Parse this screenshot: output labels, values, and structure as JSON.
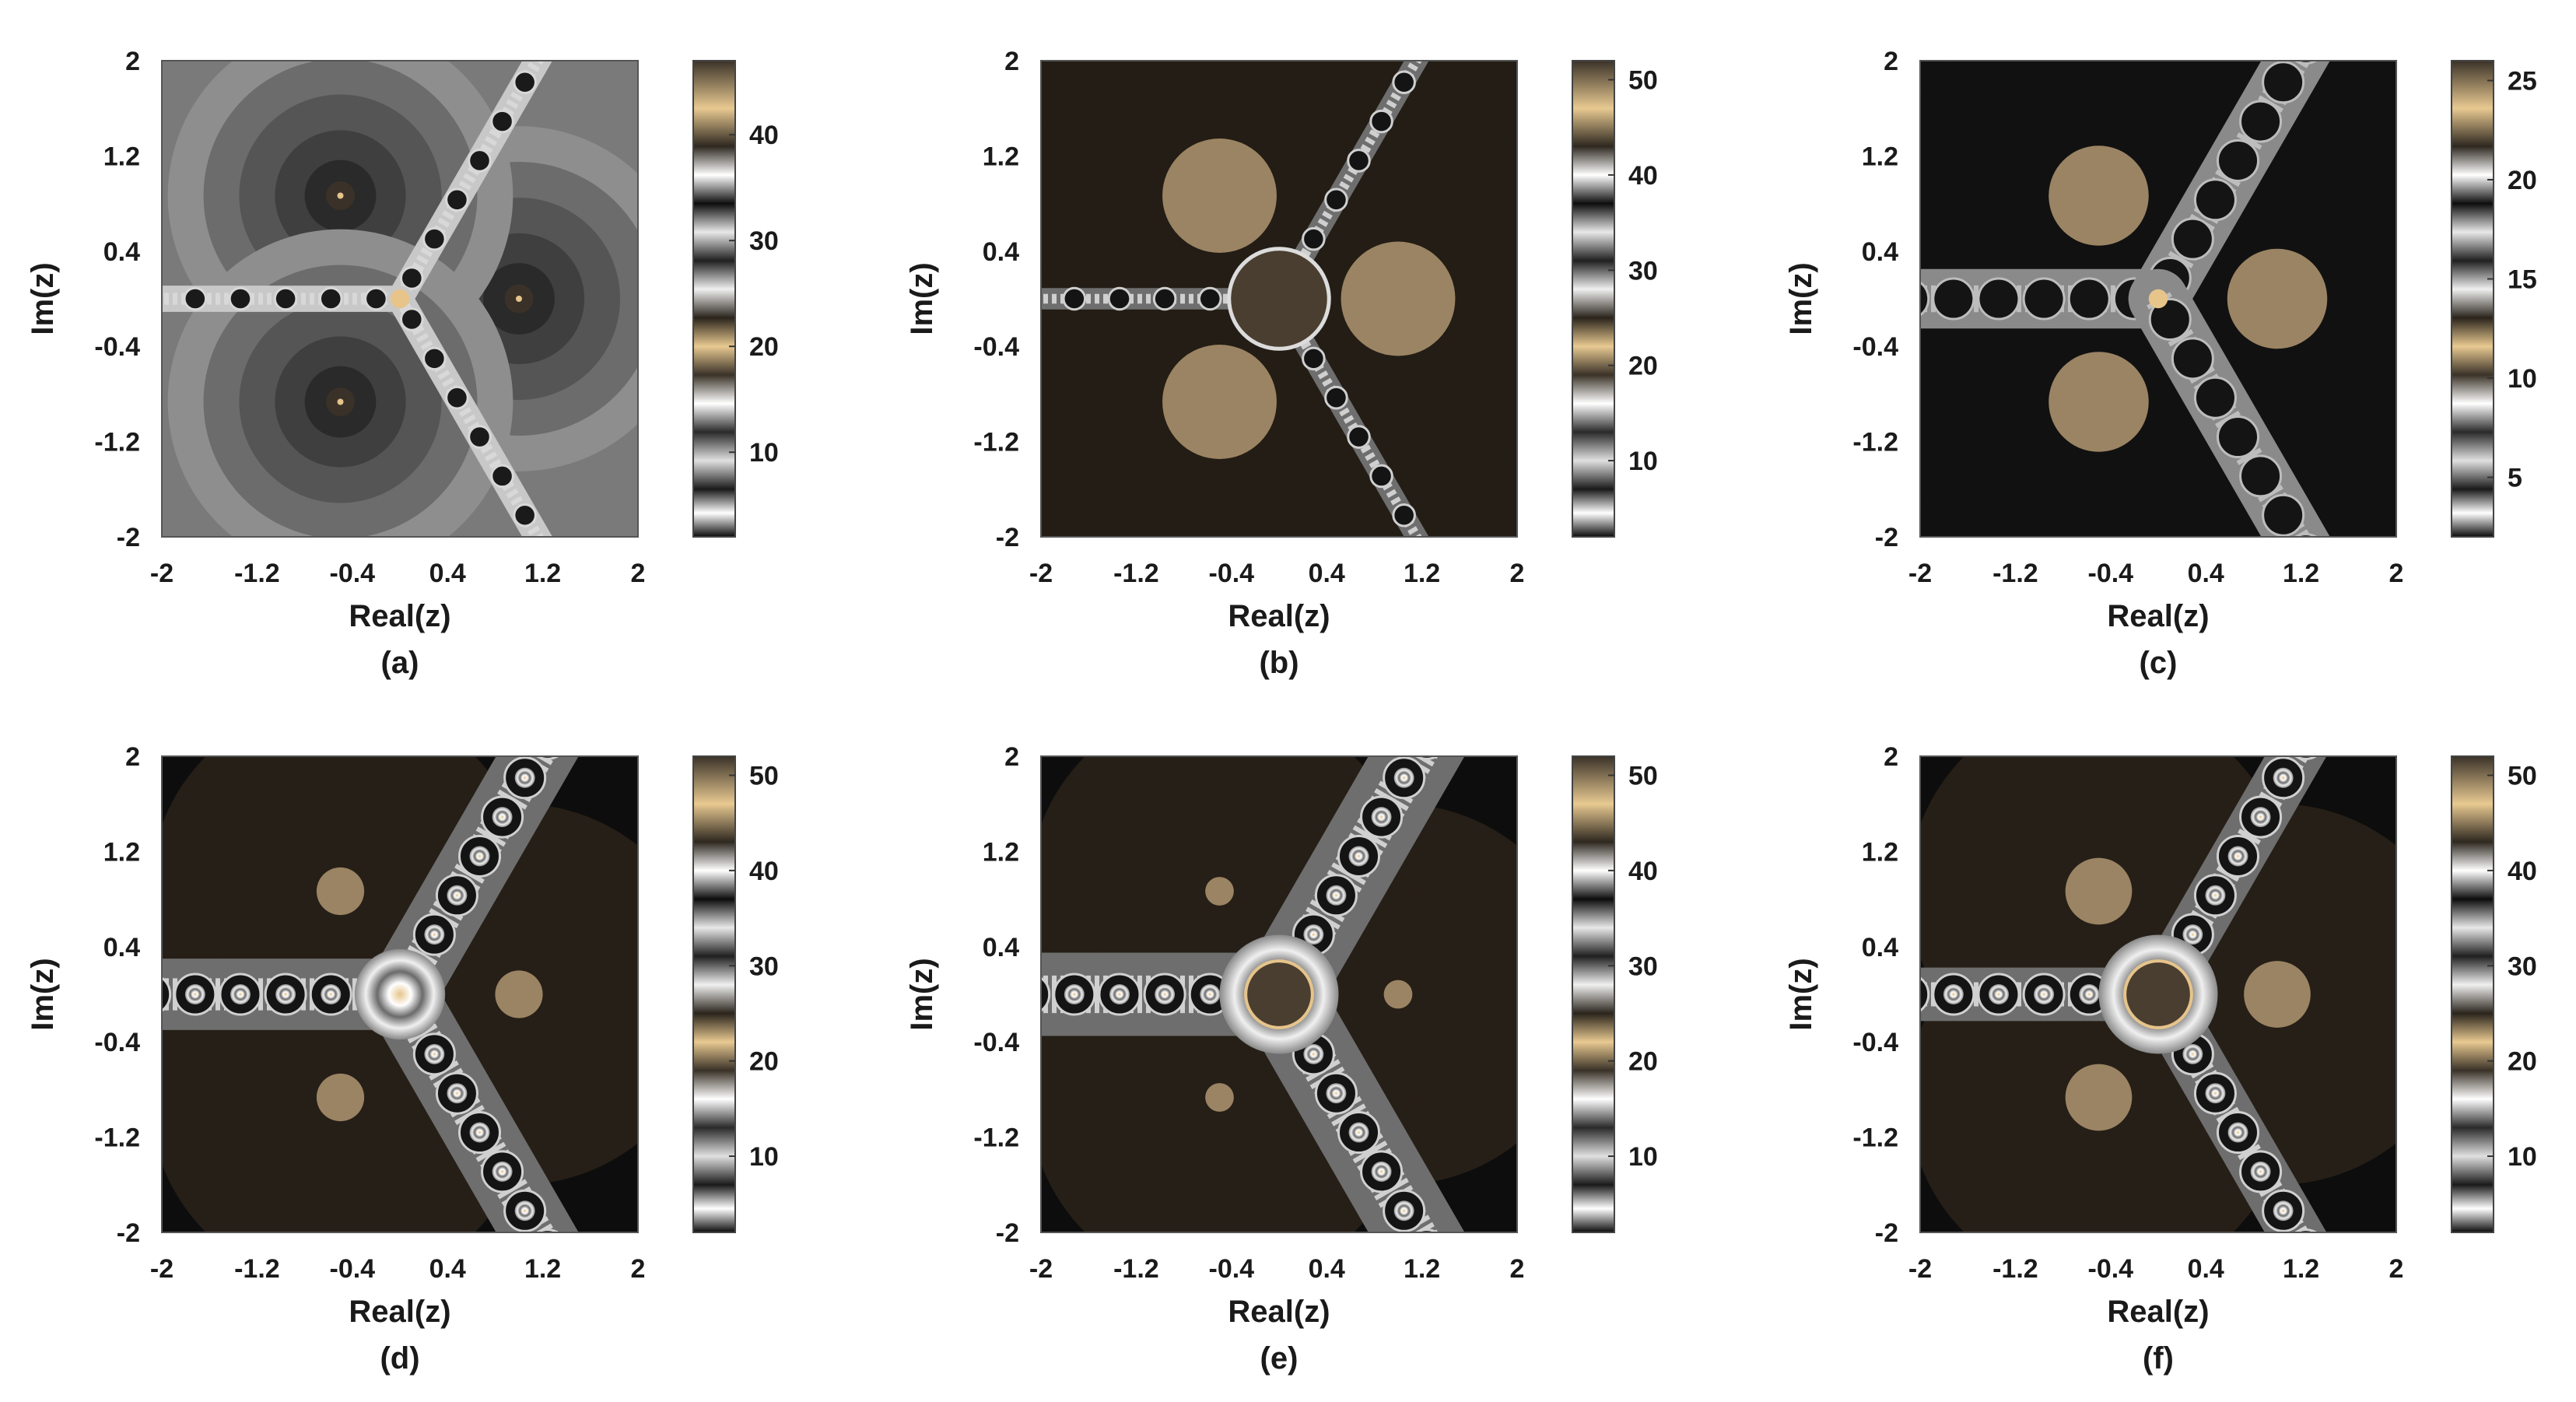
{
  "chart_data": [
    {
      "type": "heatmap",
      "caption": "(a)",
      "xlabel": "Real(z)",
      "ylabel": "Im(z)",
      "xlim": [
        -2,
        2
      ],
      "ylim": [
        -2,
        2
      ],
      "xticks": [
        "-2",
        "-1.2",
        "-0.4",
        "0.4",
        "1.2",
        "2"
      ],
      "yticks": [
        "2",
        "1.2",
        "0.4",
        "-0.4",
        "-1.2",
        "-2"
      ],
      "colorbar": {
        "ticks": [
          "40",
          "30",
          "20",
          "10"
        ],
        "range": [
          2,
          47
        ]
      },
      "roots": [
        [
          1,
          0
        ],
        [
          -0.5,
          0.866
        ],
        [
          -0.5,
          -0.866
        ]
      ],
      "background": "#7a7a7a",
      "basin_color": "#2e2e2e",
      "root_disk_color": "#3a3228",
      "fractal_color": "#d8d8d8",
      "style": "a"
    },
    {
      "type": "heatmap",
      "caption": "(b)",
      "xlabel": "Real(z)",
      "ylabel": "Im(z)",
      "xlim": [
        -2,
        2
      ],
      "ylim": [
        -2,
        2
      ],
      "xticks": [
        "-2",
        "-1.2",
        "-0.4",
        "0.4",
        "1.2",
        "2"
      ],
      "yticks": [
        "2",
        "1.2",
        "0.4",
        "-0.4",
        "-1.2",
        "-2"
      ],
      "colorbar": {
        "ticks": [
          "50",
          "40",
          "30",
          "20",
          "10"
        ],
        "range": [
          2,
          52
        ]
      },
      "roots": [
        [
          1,
          0
        ],
        [
          -0.5,
          0.866
        ],
        [
          -0.5,
          -0.866
        ]
      ],
      "background": "#231d15",
      "basin_color": "#231d15",
      "root_disk_color": "#9b8463",
      "fractal_color": "#cfcfcf",
      "style": "b"
    },
    {
      "type": "heatmap",
      "caption": "(c)",
      "xlabel": "Real(z)",
      "ylabel": "Im(z)",
      "xlim": [
        -2,
        2
      ],
      "ylim": [
        -2,
        2
      ],
      "xticks": [
        "-2",
        "-1.2",
        "-0.4",
        "0.4",
        "1.2",
        "2"
      ],
      "yticks": [
        "2",
        "1.2",
        "0.4",
        "-0.4",
        "-1.2",
        "-2"
      ],
      "colorbar": {
        "ticks": [
          "25",
          "20",
          "15",
          "10",
          "5"
        ],
        "range": [
          2,
          26
        ]
      },
      "roots": [
        [
          1,
          0
        ],
        [
          -0.5,
          0.866
        ],
        [
          -0.5,
          -0.866
        ]
      ],
      "background": "#111111",
      "basin_color": "#111111",
      "root_disk_color": "#9b8463",
      "fractal_color": "#bdbdbd",
      "style": "c"
    },
    {
      "type": "heatmap",
      "caption": "(d)",
      "xlabel": "Real(z)",
      "ylabel": "Im(z)",
      "xlim": [
        -2,
        2
      ],
      "ylim": [
        -2,
        2
      ],
      "xticks": [
        "-2",
        "-1.2",
        "-0.4",
        "0.4",
        "1.2",
        "2"
      ],
      "yticks": [
        "2",
        "1.2",
        "0.4",
        "-0.4",
        "-1.2",
        "-2"
      ],
      "colorbar": {
        "ticks": [
          "50",
          "40",
          "30",
          "20",
          "10"
        ],
        "range": [
          2,
          52
        ]
      },
      "roots": [
        [
          1,
          0
        ],
        [
          -0.5,
          0.866
        ],
        [
          -0.5,
          -0.866
        ]
      ],
      "background": "#0d0d0d",
      "basin_color": "#261f17",
      "root_disk_color": "#9b8463",
      "fractal_color": "#d0d0d0",
      "style": "d"
    },
    {
      "type": "heatmap",
      "caption": "(e)",
      "xlabel": "Real(z)",
      "ylabel": "Im(z)",
      "xlim": [
        -2,
        2
      ],
      "ylim": [
        -2,
        2
      ],
      "xticks": [
        "-2",
        "-1.2",
        "-0.4",
        "0.4",
        "1.2",
        "2"
      ],
      "yticks": [
        "2",
        "1.2",
        "0.4",
        "-0.4",
        "-1.2",
        "-2"
      ],
      "colorbar": {
        "ticks": [
          "50",
          "40",
          "30",
          "20",
          "10"
        ],
        "range": [
          2,
          52
        ]
      },
      "roots": [
        [
          1,
          0
        ],
        [
          -0.5,
          0.866
        ],
        [
          -0.5,
          -0.866
        ]
      ],
      "background": "#0d0d0d",
      "basin_color": "#261f17",
      "root_disk_color": "#9b8463",
      "fractal_color": "#d0d0d0",
      "style": "e"
    },
    {
      "type": "heatmap",
      "caption": "(f)",
      "xlabel": "Real(z)",
      "ylabel": "Im(z)",
      "xlim": [
        -2,
        2
      ],
      "ylim": [
        -2,
        2
      ],
      "xticks": [
        "-2",
        "-1.2",
        "-0.4",
        "0.4",
        "1.2",
        "2"
      ],
      "yticks": [
        "2",
        "1.2",
        "0.4",
        "-0.4",
        "-1.2",
        "-2"
      ],
      "colorbar": {
        "ticks": [
          "50",
          "40",
          "30",
          "20",
          "10"
        ],
        "range": [
          2,
          52
        ]
      },
      "roots": [
        [
          1,
          0
        ],
        [
          -0.5,
          0.866
        ],
        [
          -0.5,
          -0.866
        ]
      ],
      "background": "#0d0d0d",
      "basin_color": "#261f17",
      "root_disk_color": "#9b8463",
      "fractal_color": "#d0d0d0",
      "style": "f"
    }
  ]
}
